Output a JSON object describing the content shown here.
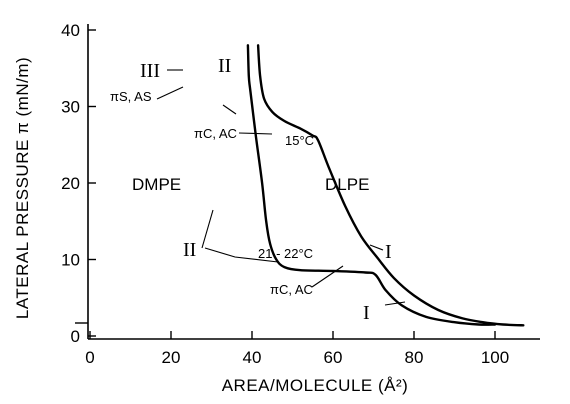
{
  "chart_data": {
    "type": "line",
    "title": "",
    "xlabel": "AREA/MOLECULE (Å²)",
    "ylabel": "LATERAL PRESSURE π (mN/m)",
    "xlim": [
      0,
      115
    ],
    "ylim": [
      0,
      40
    ],
    "x_ticks": [
      {
        "value": 0,
        "label": "0"
      },
      {
        "value": 20,
        "label": "20"
      },
      {
        "value": 40,
        "label": "40"
      },
      {
        "value": 60,
        "label": "60"
      },
      {
        "value": 80,
        "label": "80"
      },
      {
        "value": 100,
        "label": "100"
      }
    ],
    "y_ticks": [
      {
        "value": 0,
        "label": "0"
      },
      {
        "value": 10,
        "label": "10"
      },
      {
        "value": 20,
        "label": "20"
      },
      {
        "value": 30,
        "label": "30"
      },
      {
        "value": 40,
        "label": "40"
      }
    ],
    "grid": false,
    "series": [
      {
        "name": "DMPE",
        "temperature": "21 - 22°C",
        "points": [
          [
            39,
            38
          ],
          [
            39.2,
            34
          ],
          [
            39.6,
            32
          ],
          [
            41,
            26
          ],
          [
            42.5,
            20
          ],
          [
            43.5,
            15
          ],
          [
            44.5,
            12
          ],
          [
            46,
            10
          ],
          [
            48,
            9
          ],
          [
            52,
            8.6
          ],
          [
            60,
            8.5
          ],
          [
            68,
            8.3
          ],
          [
            70.5,
            8.0
          ],
          [
            73,
            6.0
          ],
          [
            77,
            4.0
          ],
          [
            83,
            2.5
          ],
          [
            90,
            1.8
          ],
          [
            96,
            1.5
          ],
          [
            100,
            1.5
          ]
        ]
      },
      {
        "name": "DLPE",
        "temperature": "15°C",
        "points": [
          [
            41.5,
            38
          ],
          [
            42,
            34
          ],
          [
            43,
            31
          ],
          [
            45,
            29.3
          ],
          [
            48,
            28.1
          ],
          [
            52,
            27.1
          ],
          [
            55,
            26.2
          ],
          [
            56.3,
            25.6
          ],
          [
            59,
            22
          ],
          [
            63,
            17
          ],
          [
            67,
            13
          ],
          [
            71,
            10.2
          ],
          [
            75,
            7.6
          ],
          [
            80,
            5.3
          ],
          [
            86,
            3.4
          ],
          [
            92,
            2.3
          ],
          [
            97,
            1.8
          ],
          [
            102,
            1.5
          ],
          [
            107,
            1.4
          ]
        ]
      }
    ],
    "annotations": {
      "dmpe_label": "DMPE",
      "dlpe_label": "DLPE",
      "dlpe_temp": "15°C",
      "dmpe_temp": "21 - 22°C",
      "phase_III": "III",
      "phase_II_dlpe": "II",
      "phase_II_dmpe": "II",
      "phase_I_dlpe": "I",
      "phase_I_dmpe": "I",
      "pis_as": "πS, AS",
      "pic_ac_dlpe": "πC, AC",
      "pic_ac_dmpe": "πC, AC"
    }
  }
}
